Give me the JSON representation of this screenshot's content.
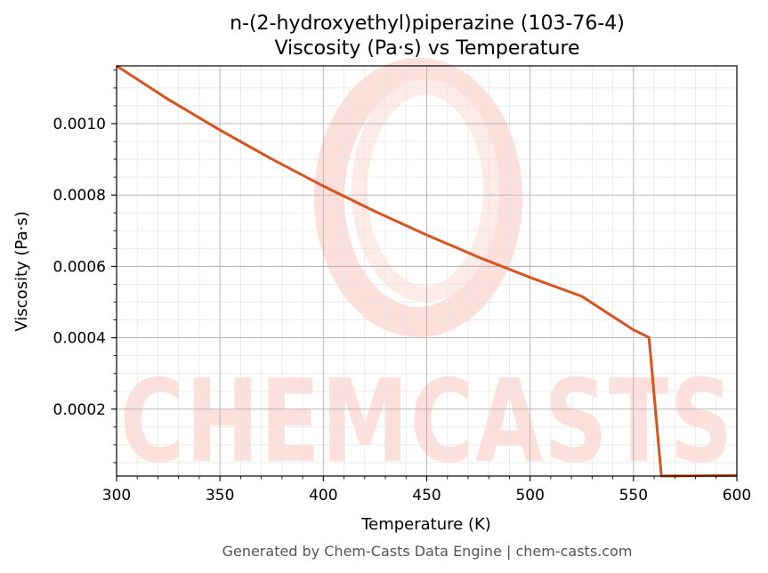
{
  "chart_data": {
    "type": "line",
    "title_line1": "n-(2-hydroxyethyl)piperazine (103-76-4)",
    "title_line2": "Viscosity (Pa·s) vs Temperature",
    "xlabel": "Temperature (K)",
    "ylabel": "Viscosity (Pa·s)",
    "xlim": [
      300,
      600
    ],
    "ylim": [
      1.25e-05,
      0.001162
    ],
    "x_ticks": [
      300,
      350,
      400,
      450,
      500,
      550,
      600
    ],
    "x_tick_labels": [
      "300",
      "350",
      "400",
      "450",
      "500",
      "550",
      "600"
    ],
    "y_ticks": [
      0.0002,
      0.0004,
      0.0006,
      0.0008,
      0.001
    ],
    "y_tick_labels": [
      "0.0002",
      "0.0004",
      "0.0006",
      "0.0008",
      "0.0010"
    ],
    "grid": true,
    "minor_grid": true,
    "series": [
      {
        "color": "#d9531e",
        "x": [
          300,
          325,
          350,
          375,
          400,
          425,
          450,
          475,
          500,
          525,
          550,
          557.5,
          563.5,
          580,
          600
        ],
        "y": [
          0.001162,
          0.001068,
          0.000982,
          0.000901,
          0.000825,
          0.000754,
          0.000688,
          0.000626,
          0.000569,
          0.000516,
          0.000422,
          0.000401,
          1.25e-05,
          1.3e-05,
          1.4e-05
        ]
      }
    ]
  },
  "watermark": {
    "text": "CHEMCASTS"
  },
  "footer": {
    "text": "Generated by Chem-Casts Data Engine | chem-casts.com"
  },
  "colors": {
    "line": "#d9531e",
    "grid_major": "#b0b0b0",
    "grid_minor": "#e6e6e6",
    "watermark": "#fde0dc"
  }
}
